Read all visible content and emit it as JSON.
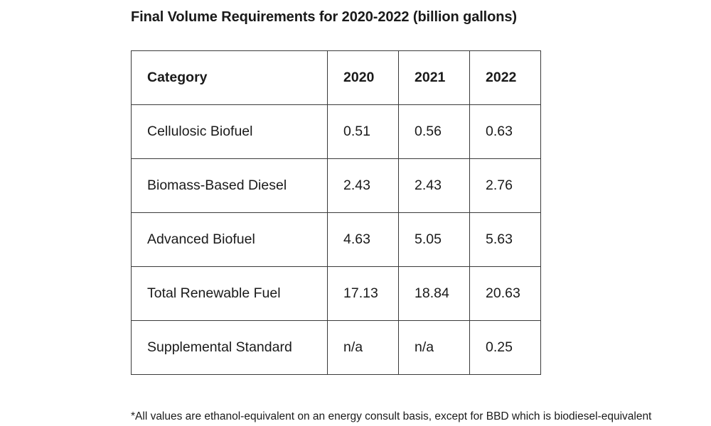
{
  "title": "Final Volume Requirements for 2020-2022 (billion gallons)",
  "table": {
    "headers": [
      "Category",
      "2020",
      "2021",
      "2022"
    ],
    "rows": [
      [
        "Cellulosic Biofuel",
        "0.51",
        "0.56",
        "0.63"
      ],
      [
        "Biomass-Based Diesel",
        "2.43",
        "2.43",
        "2.76"
      ],
      [
        "Advanced Biofuel",
        "4.63",
        "5.05",
        "5.63"
      ],
      [
        "Total Renewable Fuel",
        "17.13",
        "18.84",
        "20.63"
      ],
      [
        "Supplemental Standard",
        "n/a",
        "n/a",
        "0.25"
      ]
    ]
  },
  "footnote": "*All values are ethanol-equivalent on an energy consult basis, except for BBD which is biodiesel-equivalent"
}
